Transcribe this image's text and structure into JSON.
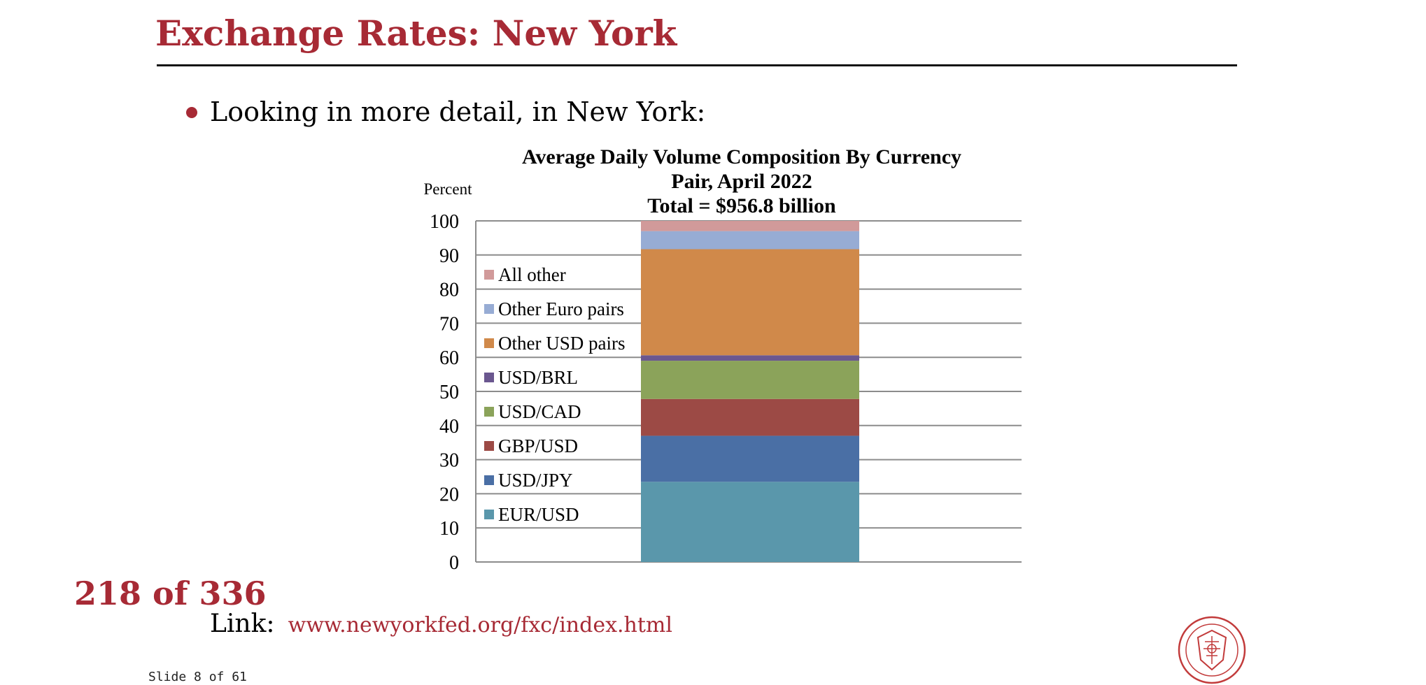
{
  "slide": {
    "title": "Exchange Rates: New York",
    "bullet": "Looking in more detail, in New York:",
    "counter": "218 of 336",
    "link_label": "Link:",
    "link_url": "www.newyorkfed.org/fxc/index.html",
    "footer": "Slide 8 of 61"
  },
  "colors": {
    "title_red": "#a72a35",
    "link_red": "#a72a35"
  },
  "seal": {
    "icon": "university-seal-icon"
  },
  "chart_data": {
    "type": "bar",
    "stacked": true,
    "title_lines": [
      "Average Daily Volume Composition  By Currency",
      "Pair, April 2022",
      "Total = $956.8 billion"
    ],
    "ylabel": "Percent",
    "ylim": [
      0,
      100
    ],
    "yticks": [
      "0",
      "10",
      "20",
      "30",
      "40",
      "50",
      "60",
      "70",
      "80",
      "90",
      "100"
    ],
    "grid": true,
    "legend_position": "left-inside",
    "series": [
      {
        "name": "EUR/USD",
        "value": 23.5,
        "color": "#5a97ab"
      },
      {
        "name": "USD/JPY",
        "value": 13.5,
        "color": "#4a6fa5"
      },
      {
        "name": "GBP/USD",
        "value": 10.8,
        "color": "#9c4a45"
      },
      {
        "name": "USD/CAD",
        "value": 11.2,
        "color": "#8ba35a"
      },
      {
        "name": "USD/BRL",
        "value": 1.6,
        "color": "#6a578f"
      },
      {
        "name": "Other USD pairs",
        "value": 31.1,
        "color": "#d0894a"
      },
      {
        "name": "Other Euro pairs",
        "value": 5.3,
        "color": "#97acd4"
      },
      {
        "name": "All other",
        "value": 3.0,
        "color": "#d19a9a"
      }
    ]
  }
}
